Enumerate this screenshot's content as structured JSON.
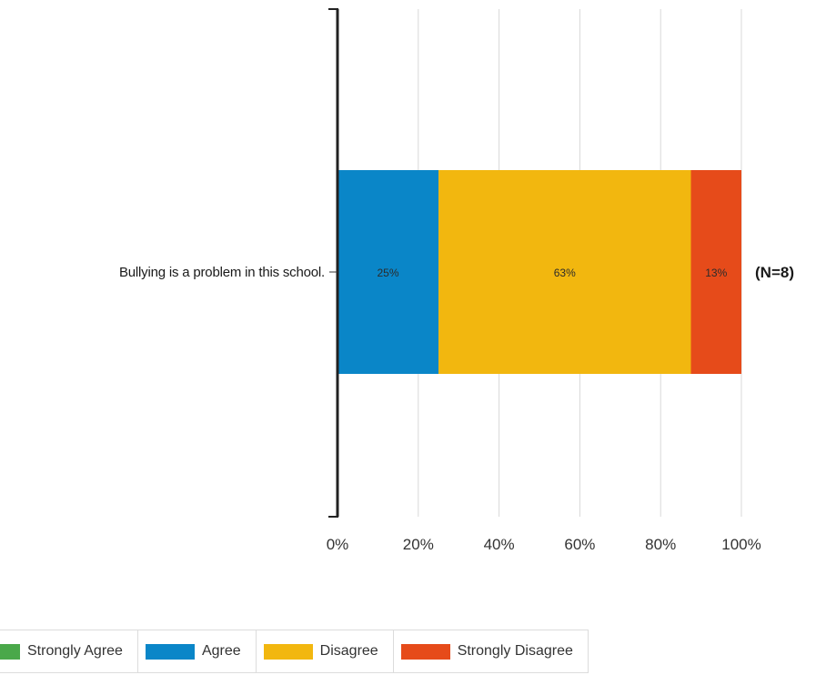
{
  "chart_data": {
    "type": "bar",
    "orientation": "horizontal",
    "stacked": true,
    "categories": [
      "Bullying is a problem in this school."
    ],
    "series": [
      {
        "name": "Strongly Agree",
        "color": "#4aa84a",
        "values": [
          0
        ],
        "labels": [
          ""
        ]
      },
      {
        "name": "Agree",
        "color": "#0a86c8",
        "values": [
          25
        ],
        "labels": [
          "25%"
        ]
      },
      {
        "name": "Disagree",
        "color": "#f2b70f",
        "values": [
          62.5
        ],
        "labels": [
          "63%"
        ]
      },
      {
        "name": "Strongly Disagree",
        "color": "#e64b1a",
        "values": [
          12.5
        ],
        "labels": [
          "13%"
        ]
      }
    ],
    "xlim": [
      0,
      100
    ],
    "x_ticks": [
      "0%",
      "20%",
      "40%",
      "60%",
      "80%",
      "100%"
    ],
    "grid": true,
    "legend_position": "bottom-left",
    "annotations": [
      "(N=8)"
    ]
  }
}
